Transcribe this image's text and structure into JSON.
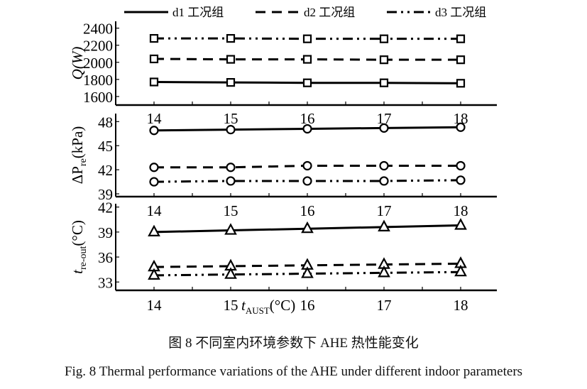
{
  "legend": [
    {
      "name": "d1 工况组",
      "style": "solid"
    },
    {
      "name": "d2 工况组",
      "style": "dashed"
    },
    {
      "name": "d3 工况组",
      "style": "dashdotdot"
    }
  ],
  "caption_cn": "图 8 不同室内环境参数下 AHE 热性能变化",
  "caption_en": "Fig. 8 Thermal performance variations of the AHE under different indoor parameters",
  "chart_data": [
    {
      "type": "line",
      "ylabel": "Q(W)",
      "x": [
        14,
        15,
        16,
        17,
        18
      ],
      "xticks": [
        "14",
        "15",
        "16",
        "17",
        "18"
      ],
      "ylim": [
        1500,
        2480
      ],
      "yticks": [
        1600,
        1800,
        2000,
        2200,
        2400
      ],
      "marker": "square",
      "series": [
        {
          "name": "d1 工况组",
          "values": [
            1770,
            1765,
            1760,
            1760,
            1755
          ]
        },
        {
          "name": "d2 工况组",
          "values": [
            2040,
            2035,
            2035,
            2030,
            2030
          ]
        },
        {
          "name": "d3 工况组",
          "values": [
            2280,
            2280,
            2275,
            2275,
            2275
          ]
        }
      ]
    },
    {
      "type": "line",
      "ylabel": "ΔP",
      "ylabel_sub": "re",
      "ylabel_unit": "(kPa)",
      "x": [
        14,
        15,
        16,
        17,
        18
      ],
      "xticks": [
        "14",
        "15",
        "16",
        "17",
        "18"
      ],
      "ylim": [
        38.65,
        49
      ],
      "yticks": [
        39,
        42,
        45,
        48
      ],
      "marker": "circle",
      "series": [
        {
          "name": "d1 工况组",
          "values": [
            46.9,
            47.0,
            47.1,
            47.2,
            47.3
          ]
        },
        {
          "name": "d2 工况组",
          "values": [
            42.3,
            42.3,
            42.5,
            42.5,
            42.5
          ]
        },
        {
          "name": "d3 工况组",
          "values": [
            40.5,
            40.6,
            40.6,
            40.6,
            40.7
          ]
        }
      ]
    },
    {
      "type": "line",
      "ylabel": "t",
      "ylabel_sub": "re-out",
      "ylabel_unit": "(°C)",
      "xlabel": "t",
      "xlabel_sub": "AUST",
      "xlabel_unit": "(°C)",
      "x": [
        14,
        15,
        16,
        17,
        18
      ],
      "xticks": [
        "14",
        "15",
        "16",
        "17",
        "18"
      ],
      "ylim": [
        32,
        42.4
      ],
      "yticks": [
        33,
        36,
        39,
        42
      ],
      "marker": "triangle",
      "series": [
        {
          "name": "d1 工况组",
          "values": [
            39.0,
            39.2,
            39.4,
            39.6,
            39.8
          ]
        },
        {
          "name": "d2 工况组",
          "values": [
            34.8,
            34.9,
            35.0,
            35.1,
            35.2
          ]
        },
        {
          "name": "d3 工况组",
          "values": [
            33.8,
            33.9,
            34.0,
            34.1,
            34.2
          ]
        }
      ]
    }
  ]
}
